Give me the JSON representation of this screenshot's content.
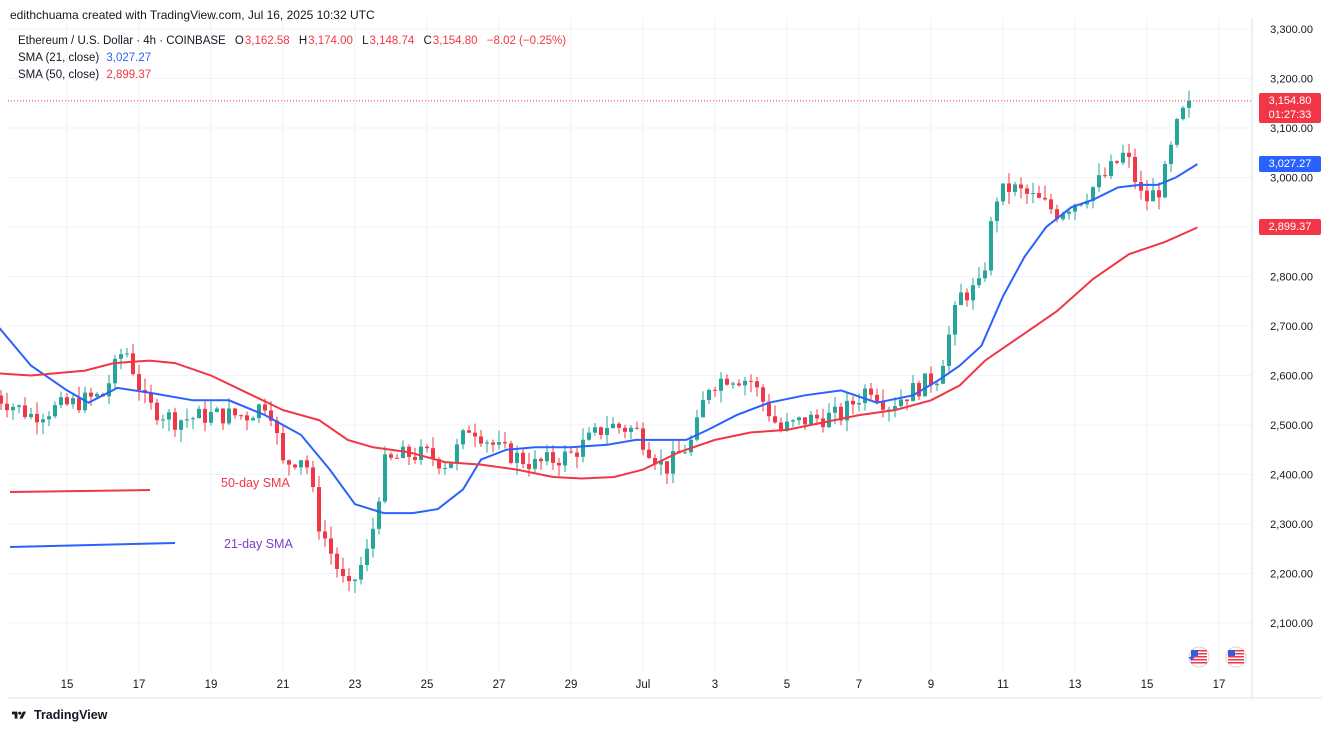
{
  "credit": "edithchuama created with TradingView.com, Jul 16, 2025 10:32 UTC",
  "legend": {
    "symbol": "Ethereum / U.S. Dollar · 4h · COINBASE",
    "o_label": "O",
    "o": "3,162.58",
    "h_label": "H",
    "h": "3,174.00",
    "l_label": "L",
    "l": "3,148.74",
    "c_label": "C",
    "c": "3,154.80",
    "change": "−8.02 (−0.25%)",
    "sma21_label": "SMA (21, close)",
    "sma21_value": "3,027.27",
    "sma50_label": "SMA (50, close)",
    "sma50_value": "2,899.37"
  },
  "footer": {
    "brand": "TradingView"
  },
  "price_tags": {
    "last": "3,154.80",
    "countdown": "01:27:33",
    "sma21": "3,027.27",
    "sma50": "2,899.37"
  },
  "colors": {
    "up": "#26a69a",
    "down": "#f23645",
    "sma21": "#2962ff",
    "sma50": "#f23645",
    "grid": "#f0f3fa",
    "axis_text": "#131722"
  },
  "chart_data": {
    "type": "candlestick",
    "y_axis": {
      "min": 2000,
      "max": 3300,
      "ticks": [
        "2,100.00",
        "2,200.00",
        "2,300.00",
        "2,400.00",
        "2,500.00",
        "2,600.00",
        "2,700.00",
        "2,800.00",
        "2,900.00",
        "3,000.00",
        "3,100.00",
        "3,200.00",
        "3,300.00"
      ]
    },
    "x_axis": {
      "ticks": [
        {
          "label": "15",
          "day": 15
        },
        {
          "label": "17",
          "day": 17
        },
        {
          "label": "19",
          "day": 19
        },
        {
          "label": "21",
          "day": 21
        },
        {
          "label": "23",
          "day": 23
        },
        {
          "label": "25",
          "day": 25
        },
        {
          "label": "27",
          "day": 27
        },
        {
          "label": "29",
          "day": 29
        },
        {
          "label": "Jul",
          "day": 31
        },
        {
          "label": "3",
          "day": 33
        },
        {
          "label": "5",
          "day": 35
        },
        {
          "label": "7",
          "day": 37
        },
        {
          "label": "9",
          "day": 39
        },
        {
          "label": "11",
          "day": 41
        },
        {
          "label": "13",
          "day": 43
        },
        {
          "label": "15",
          "day": 45
        },
        {
          "label": "17",
          "day": 47
        }
      ]
    },
    "key_levels": [
      {
        "t": 13.0,
        "p": 2560
      },
      {
        "t": 14.0,
        "p": 2520
      },
      {
        "t": 15.0,
        "p": 2540
      },
      {
        "t": 16.0,
        "p": 2560
      },
      {
        "t": 16.6,
        "p": 2660
      },
      {
        "t": 17.2,
        "p": 2540
      },
      {
        "t": 18.0,
        "p": 2510
      },
      {
        "t": 19.0,
        "p": 2520
      },
      {
        "t": 20.0,
        "p": 2520
      },
      {
        "t": 20.6,
        "p": 2550
      },
      {
        "t": 21.0,
        "p": 2420
      },
      {
        "t": 21.6,
        "p": 2440
      },
      {
        "t": 22.0,
        "p": 2300
      },
      {
        "t": 22.4,
        "p": 2230
      },
      {
        "t": 22.8,
        "p": 2160
      },
      {
        "t": 23.4,
        "p": 2250
      },
      {
        "t": 23.8,
        "p": 2420
      },
      {
        "t": 24.4,
        "p": 2440
      },
      {
        "t": 25.0,
        "p": 2440
      },
      {
        "t": 25.6,
        "p": 2420
      },
      {
        "t": 26.2,
        "p": 2500
      },
      {
        "t": 27.0,
        "p": 2450
      },
      {
        "t": 28.0,
        "p": 2420
      },
      {
        "t": 29.0,
        "p": 2440
      },
      {
        "t": 30.0,
        "p": 2500
      },
      {
        "t": 30.8,
        "p": 2490
      },
      {
        "t": 31.6,
        "p": 2410
      },
      {
        "t": 32.4,
        "p": 2470
      },
      {
        "t": 32.8,
        "p": 2580
      },
      {
        "t": 33.4,
        "p": 2600
      },
      {
        "t": 34.0,
        "p": 2590
      },
      {
        "t": 34.8,
        "p": 2490
      },
      {
        "t": 35.5,
        "p": 2510
      },
      {
        "t": 36.5,
        "p": 2520
      },
      {
        "t": 37.3,
        "p": 2580
      },
      {
        "t": 37.8,
        "p": 2540
      },
      {
        "t": 38.5,
        "p": 2570
      },
      {
        "t": 39.2,
        "p": 2600
      },
      {
        "t": 39.8,
        "p": 2760
      },
      {
        "t": 40.4,
        "p": 2780
      },
      {
        "t": 40.8,
        "p": 2960
      },
      {
        "t": 41.2,
        "p": 2980
      },
      {
        "t": 41.8,
        "p": 2960
      },
      {
        "t": 42.5,
        "p": 2930
      },
      {
        "t": 43.2,
        "p": 2960
      },
      {
        "t": 43.8,
        "p": 3000
      },
      {
        "t": 44.4,
        "p": 3050
      },
      {
        "t": 44.9,
        "p": 2950
      },
      {
        "t": 45.4,
        "p": 2980
      },
      {
        "t": 45.9,
        "p": 3120
      },
      {
        "t": 46.3,
        "p": 3155
      }
    ],
    "sma21": [
      {
        "t": 12.9,
        "p": 2715
      },
      {
        "t": 14.0,
        "p": 2620
      },
      {
        "t": 15.0,
        "p": 2570
      },
      {
        "t": 15.6,
        "p": 2545
      },
      {
        "t": 16.4,
        "p": 2575
      },
      {
        "t": 17.3,
        "p": 2565
      },
      {
        "t": 18.5,
        "p": 2550
      },
      {
        "t": 19.5,
        "p": 2550
      },
      {
        "t": 20.5,
        "p": 2520
      },
      {
        "t": 21.5,
        "p": 2480
      },
      {
        "t": 22.3,
        "p": 2410
      },
      {
        "t": 23.0,
        "p": 2340
      },
      {
        "t": 23.8,
        "p": 2322
      },
      {
        "t": 24.6,
        "p": 2322
      },
      {
        "t": 25.3,
        "p": 2330
      },
      {
        "t": 26.0,
        "p": 2370
      },
      {
        "t": 26.5,
        "p": 2430
      },
      {
        "t": 27.2,
        "p": 2450
      },
      {
        "t": 28.0,
        "p": 2455
      },
      {
        "t": 29.0,
        "p": 2455
      },
      {
        "t": 30.0,
        "p": 2460
      },
      {
        "t": 30.8,
        "p": 2470
      },
      {
        "t": 31.5,
        "p": 2470
      },
      {
        "t": 32.2,
        "p": 2470
      },
      {
        "t": 32.8,
        "p": 2490
      },
      {
        "t": 33.6,
        "p": 2520
      },
      {
        "t": 34.5,
        "p": 2545
      },
      {
        "t": 35.5,
        "p": 2560
      },
      {
        "t": 36.5,
        "p": 2570
      },
      {
        "t": 37.5,
        "p": 2545
      },
      {
        "t": 38.5,
        "p": 2560
      },
      {
        "t": 39.2,
        "p": 2590
      },
      {
        "t": 39.8,
        "p": 2620
      },
      {
        "t": 40.4,
        "p": 2660
      },
      {
        "t": 41.0,
        "p": 2760
      },
      {
        "t": 41.6,
        "p": 2840
      },
      {
        "t": 42.2,
        "p": 2900
      },
      {
        "t": 42.9,
        "p": 2940
      },
      {
        "t": 43.5,
        "p": 2955
      },
      {
        "t": 44.2,
        "p": 2980
      },
      {
        "t": 44.8,
        "p": 2985
      },
      {
        "t": 45.3,
        "p": 2985
      },
      {
        "t": 45.8,
        "p": 3000
      },
      {
        "t": 46.4,
        "p": 3027
      }
    ],
    "sma50": [
      {
        "t": 12.9,
        "p": 2605
      },
      {
        "t": 14.0,
        "p": 2600
      },
      {
        "t": 15.5,
        "p": 2610
      },
      {
        "t": 16.3,
        "p": 2625
      },
      {
        "t": 17.3,
        "p": 2630
      },
      {
        "t": 18.0,
        "p": 2625
      },
      {
        "t": 19.0,
        "p": 2600
      },
      {
        "t": 20.0,
        "p": 2565
      },
      {
        "t": 21.0,
        "p": 2530
      },
      {
        "t": 22.0,
        "p": 2510
      },
      {
        "t": 22.8,
        "p": 2470
      },
      {
        "t": 23.5,
        "p": 2455
      },
      {
        "t": 24.5,
        "p": 2445
      },
      {
        "t": 25.5,
        "p": 2425
      },
      {
        "t": 26.5,
        "p": 2420
      },
      {
        "t": 27.5,
        "p": 2410
      },
      {
        "t": 28.5,
        "p": 2395
      },
      {
        "t": 29.3,
        "p": 2392
      },
      {
        "t": 30.2,
        "p": 2395
      },
      {
        "t": 31.0,
        "p": 2410
      },
      {
        "t": 32.0,
        "p": 2445
      },
      {
        "t": 33.0,
        "p": 2470
      },
      {
        "t": 34.0,
        "p": 2485
      },
      {
        "t": 35.0,
        "p": 2490
      },
      {
        "t": 36.0,
        "p": 2505
      },
      {
        "t": 37.0,
        "p": 2520
      },
      {
        "t": 38.0,
        "p": 2530
      },
      {
        "t": 39.0,
        "p": 2550
      },
      {
        "t": 39.8,
        "p": 2580
      },
      {
        "t": 40.5,
        "p": 2630
      },
      {
        "t": 41.5,
        "p": 2680
      },
      {
        "t": 42.5,
        "p": 2730
      },
      {
        "t": 43.5,
        "p": 2795
      },
      {
        "t": 44.5,
        "p": 2845
      },
      {
        "t": 45.5,
        "p": 2870
      },
      {
        "t": 46.4,
        "p": 2899
      }
    ],
    "last_price": 3154.8,
    "sma21_last": 3027.27,
    "sma50_last": 2899.37,
    "annotations": [
      {
        "text": "50-day SMA",
        "color": "#f23645"
      },
      {
        "text": "21-day SMA",
        "color": "#7b3fbf"
      }
    ]
  }
}
